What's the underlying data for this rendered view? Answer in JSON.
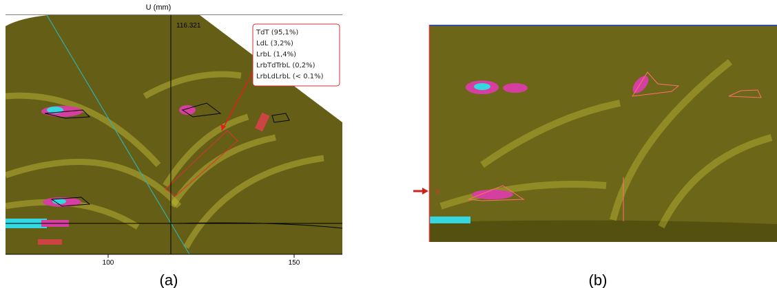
{
  "panel_a": {
    "axis_title": "U (mm)",
    "cursor_value": "116.321",
    "legend": [
      "TdT (95,1%)",
      "LdL (3,2%)",
      "LrbL (1,4%)",
      "LrbTdTrbL (0,2%)",
      "LrbLdLrbL (< 0.1%)"
    ],
    "x_ticks": [
      100,
      150
    ]
  },
  "panel_b": {
    "marker": "X"
  },
  "captions": [
    "(a)",
    "(b)"
  ]
}
